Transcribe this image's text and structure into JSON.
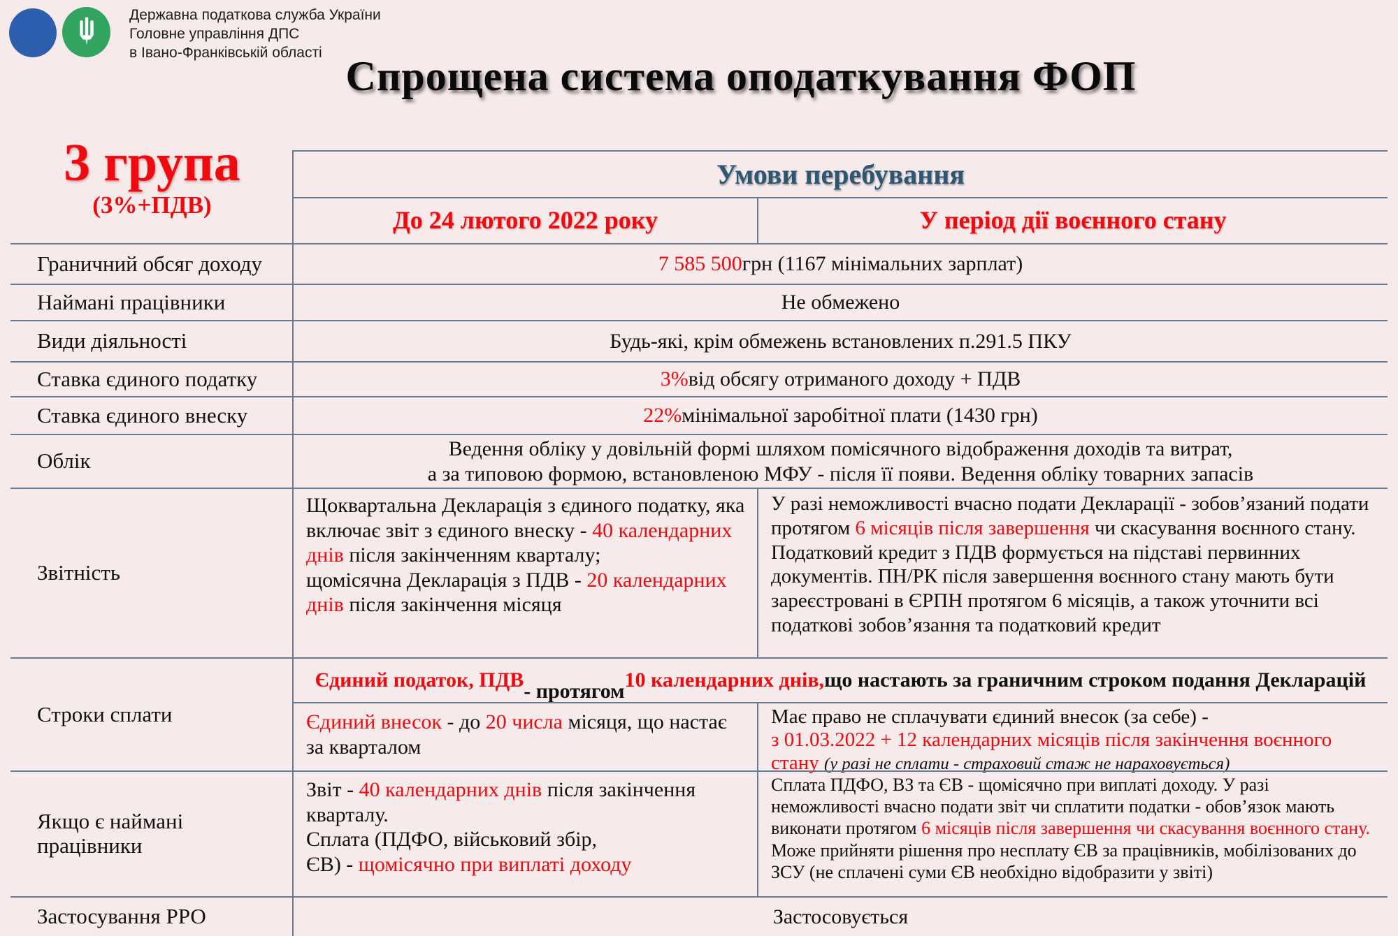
{
  "colors": {
    "background": "#f7eaea",
    "accent_red": "#ee0a0e",
    "header_blue": "#2e566f",
    "border": "#647b93",
    "logo_blue": "#2d5fae",
    "logo_green": "#31a55f"
  },
  "org": {
    "line1": "Державна податкова служба України",
    "line2": "Головне управління ДПС",
    "line3": "в Івано-Франківській області"
  },
  "title": "Спрощена система оподаткування ФОП",
  "group": {
    "name": "3 група",
    "subtitle": "(3%+ПДВ)"
  },
  "table": {
    "conditions_header": "Умови перебування",
    "col_before": "До 24 лютого 2022 року",
    "col_war": "У період дії воєнного стану",
    "rows": {
      "income_limit": {
        "label": "Граничний обсяг доходу",
        "value": [
          {
            "t": "7 585 500",
            "c": "red"
          },
          {
            "t": " грн (1167 мінімальних зарплат)"
          }
        ]
      },
      "employees": {
        "label": "Наймані працівники",
        "value": [
          {
            "t": "Не обмежено"
          }
        ]
      },
      "activities": {
        "label": "Види діяльності",
        "value": [
          {
            "t": "Будь-які, крім обмежень встановлених п.291.5 ПКУ"
          }
        ]
      },
      "single_tax_rate": {
        "label": "Ставка єдиного податку",
        "value": [
          {
            "t": "3%",
            "c": "red"
          },
          {
            "t": " від обсягу отриманого доходу + ПДВ"
          }
        ]
      },
      "single_contribution_rate": {
        "label": "Ставка єдиного внеску",
        "value": [
          {
            "t": "22%",
            "c": "red"
          },
          {
            "t": " мінімальної заробітної плати (1430 грн)"
          }
        ]
      },
      "accounting": {
        "label": "Облік",
        "value": [
          {
            "t": "Ведення обліку у довільній формі шляхом помісячного відображення доходів та витрат,\nа за типовою формою, встановленою МФУ - після її появи. Ведення обліку товарних запасів"
          }
        ]
      },
      "reporting": {
        "label": "Звітність",
        "before": [
          {
            "t": "Щоквартальна Декларація з єдиного податку, яка включає звіт з єдиного внеску - "
          },
          {
            "t": "40 календарних днів",
            "c": "red"
          },
          {
            "t": " після закінченням кварталу;\nщомісячна Декларація з ПДВ - "
          },
          {
            "t": "20 календарних днів",
            "c": "red"
          },
          {
            "t": " після закінчення місяця"
          }
        ],
        "war": [
          {
            "t": "У разі неможливості вчасно подати Декларації - зобов’язаний подати протягом "
          },
          {
            "t": "6 місяців після завершення",
            "c": "red"
          },
          {
            "t": " чи скасування воєнного стану.\nПодатковий кредит з ПДВ формується на підставі первинних документів. ПН/РК після завершення воєнного стану мають бути зареєстровані в ЄРПН протягом 6 місяців, а також уточнити всі податкові зобов’язання та податковий кредит"
          }
        ]
      },
      "payment_terms": {
        "label": "Строки сплати",
        "merged": [
          {
            "t": "Єдиний податок, ПДВ",
            "c": "red"
          },
          {
            "t": "\n- протягом "
          },
          {
            "t": "10 календарних днів,",
            "c": "red"
          },
          {
            "t": " що настають за граничним строком подання Декларацій"
          }
        ],
        "before": [
          {
            "t": "Єдиний внесок",
            "c": "red"
          },
          {
            "t": " - до "
          },
          {
            "t": "20 числа",
            "c": "red"
          },
          {
            "t": " місяця, що настає за кварталом"
          }
        ],
        "war": [
          {
            "t": "Має право не сплачувати єдиний внесок (за себе) -\n"
          },
          {
            "t": "з 01.03.2022 + 12 календарних місяців після закінчення воєнного стану ",
            "c": "red"
          },
          {
            "t": "(у разі не сплати - страховий стаж не нараховується)",
            "c": "italic"
          }
        ]
      },
      "with_employees": {
        "label": "Якщо є наймані\nпрацівники",
        "before": [
          {
            "t": "Звіт - "
          },
          {
            "t": "40 календарних днів",
            "c": "red"
          },
          {
            "t": " після закінчення кварталу.\nСплата (ПДФО, військовий збір,\nЄВ) - "
          },
          {
            "t": "щомісячно при виплаті доходу",
            "c": "red"
          }
        ],
        "war": [
          {
            "t": "Сплата ПДФО, ВЗ та ЄВ - щомісячно при виплаті доходу. У разі неможливості вчасно подати звіт чи сплатити податки - обов’язок мають виконати протягом "
          },
          {
            "t": "6 місяців після завершення чи скасування воєнного стану.",
            "c": "red"
          },
          {
            "t": " Може прийняти рішення про несплату ЄВ за працівників, мобілізованих до ЗСУ (не сплачені суми ЄВ необхідно відобразити у звіті)"
          }
        ]
      },
      "rro": {
        "label": "Застосування РРО",
        "value": [
          {
            "t": "Застосовується"
          }
        ]
      }
    }
  }
}
